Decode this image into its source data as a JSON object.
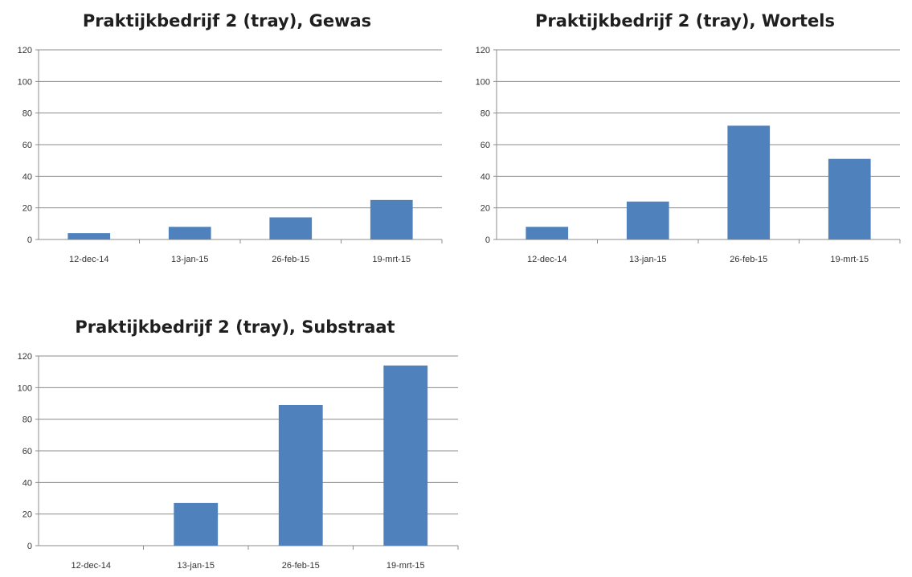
{
  "bar_color": "#4f81bd",
  "chart_data": [
    {
      "type": "bar",
      "title": "Praktijkbedrijf 2 (tray), Gewas",
      "categories": [
        "12-dec-14",
        "13-jan-15",
        "26-feb-15",
        "19-mrt-15"
      ],
      "values": [
        4,
        8,
        14,
        25
      ],
      "ylim": [
        0,
        120
      ],
      "yticks": [
        "0",
        "20",
        "40",
        "60",
        "80",
        "100",
        "120"
      ],
      "grid": true
    },
    {
      "type": "bar",
      "title": "Praktijkbedrijf 2 (tray), Wortels",
      "categories": [
        "12-dec-14",
        "13-jan-15",
        "26-feb-15",
        "19-mrt-15"
      ],
      "values": [
        8,
        24,
        72,
        51
      ],
      "ylim": [
        0,
        120
      ],
      "yticks": [
        "0",
        "20",
        "40",
        "60",
        "80",
        "100",
        "120"
      ],
      "grid": true
    },
    {
      "type": "bar",
      "title": "Praktijkbedrijf 2 (tray), Substraat",
      "categories": [
        "12-dec-14",
        "13-jan-15",
        "26-feb-15",
        "19-mrt-15"
      ],
      "values": [
        0,
        27,
        89,
        114
      ],
      "ylim": [
        0,
        120
      ],
      "yticks": [
        "0",
        "20",
        "40",
        "60",
        "80",
        "100",
        "120"
      ],
      "grid": true
    }
  ]
}
